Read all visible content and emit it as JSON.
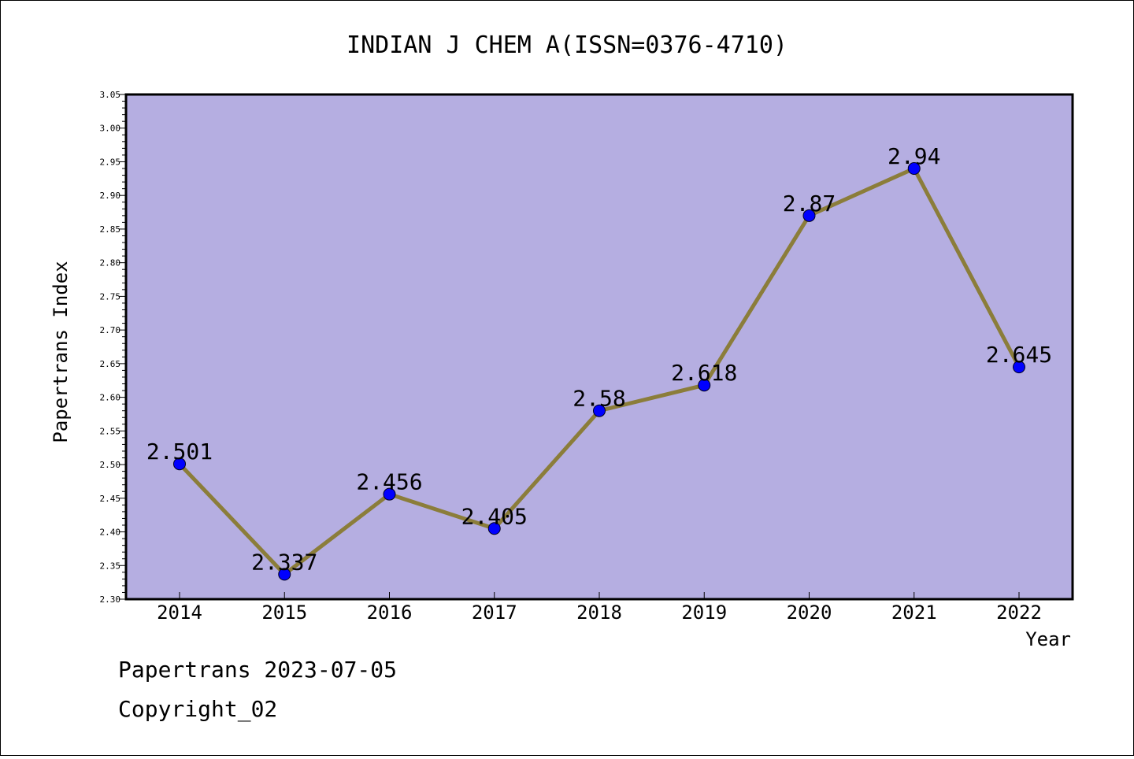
{
  "chart_data": {
    "type": "line",
    "title": "INDIAN J CHEM A(ISSN=0376-4710)",
    "xlabel": "Year",
    "ylabel": "Papertrans Index",
    "categories": [
      "2014",
      "2015",
      "2016",
      "2017",
      "2018",
      "2019",
      "2020",
      "2021",
      "2022"
    ],
    "values": [
      2.501,
      2.337,
      2.456,
      2.405,
      2.58,
      2.618,
      2.87,
      2.94,
      2.645
    ],
    "value_labels": [
      "2.501",
      "2.337",
      "2.456",
      "2.405",
      "2.58",
      "2.618",
      "2.87",
      "2.94",
      "2.645"
    ],
    "ylim": [
      2.3,
      3.05
    ],
    "yticks": [
      "2.30",
      "2.35",
      "2.40",
      "2.45",
      "2.50",
      "2.55",
      "2.60",
      "2.65",
      "2.70",
      "2.75",
      "2.80",
      "2.85",
      "2.90",
      "2.95",
      "3.00",
      "3.05"
    ],
    "grid": false,
    "legend": "none",
    "colors": {
      "plot_background": "#b5aee1",
      "line": "#8b7d3a",
      "marker": "#0000ff"
    }
  },
  "footer": {
    "source": "Papertrans 2023-07-05",
    "copyright": "Copyright_02"
  }
}
